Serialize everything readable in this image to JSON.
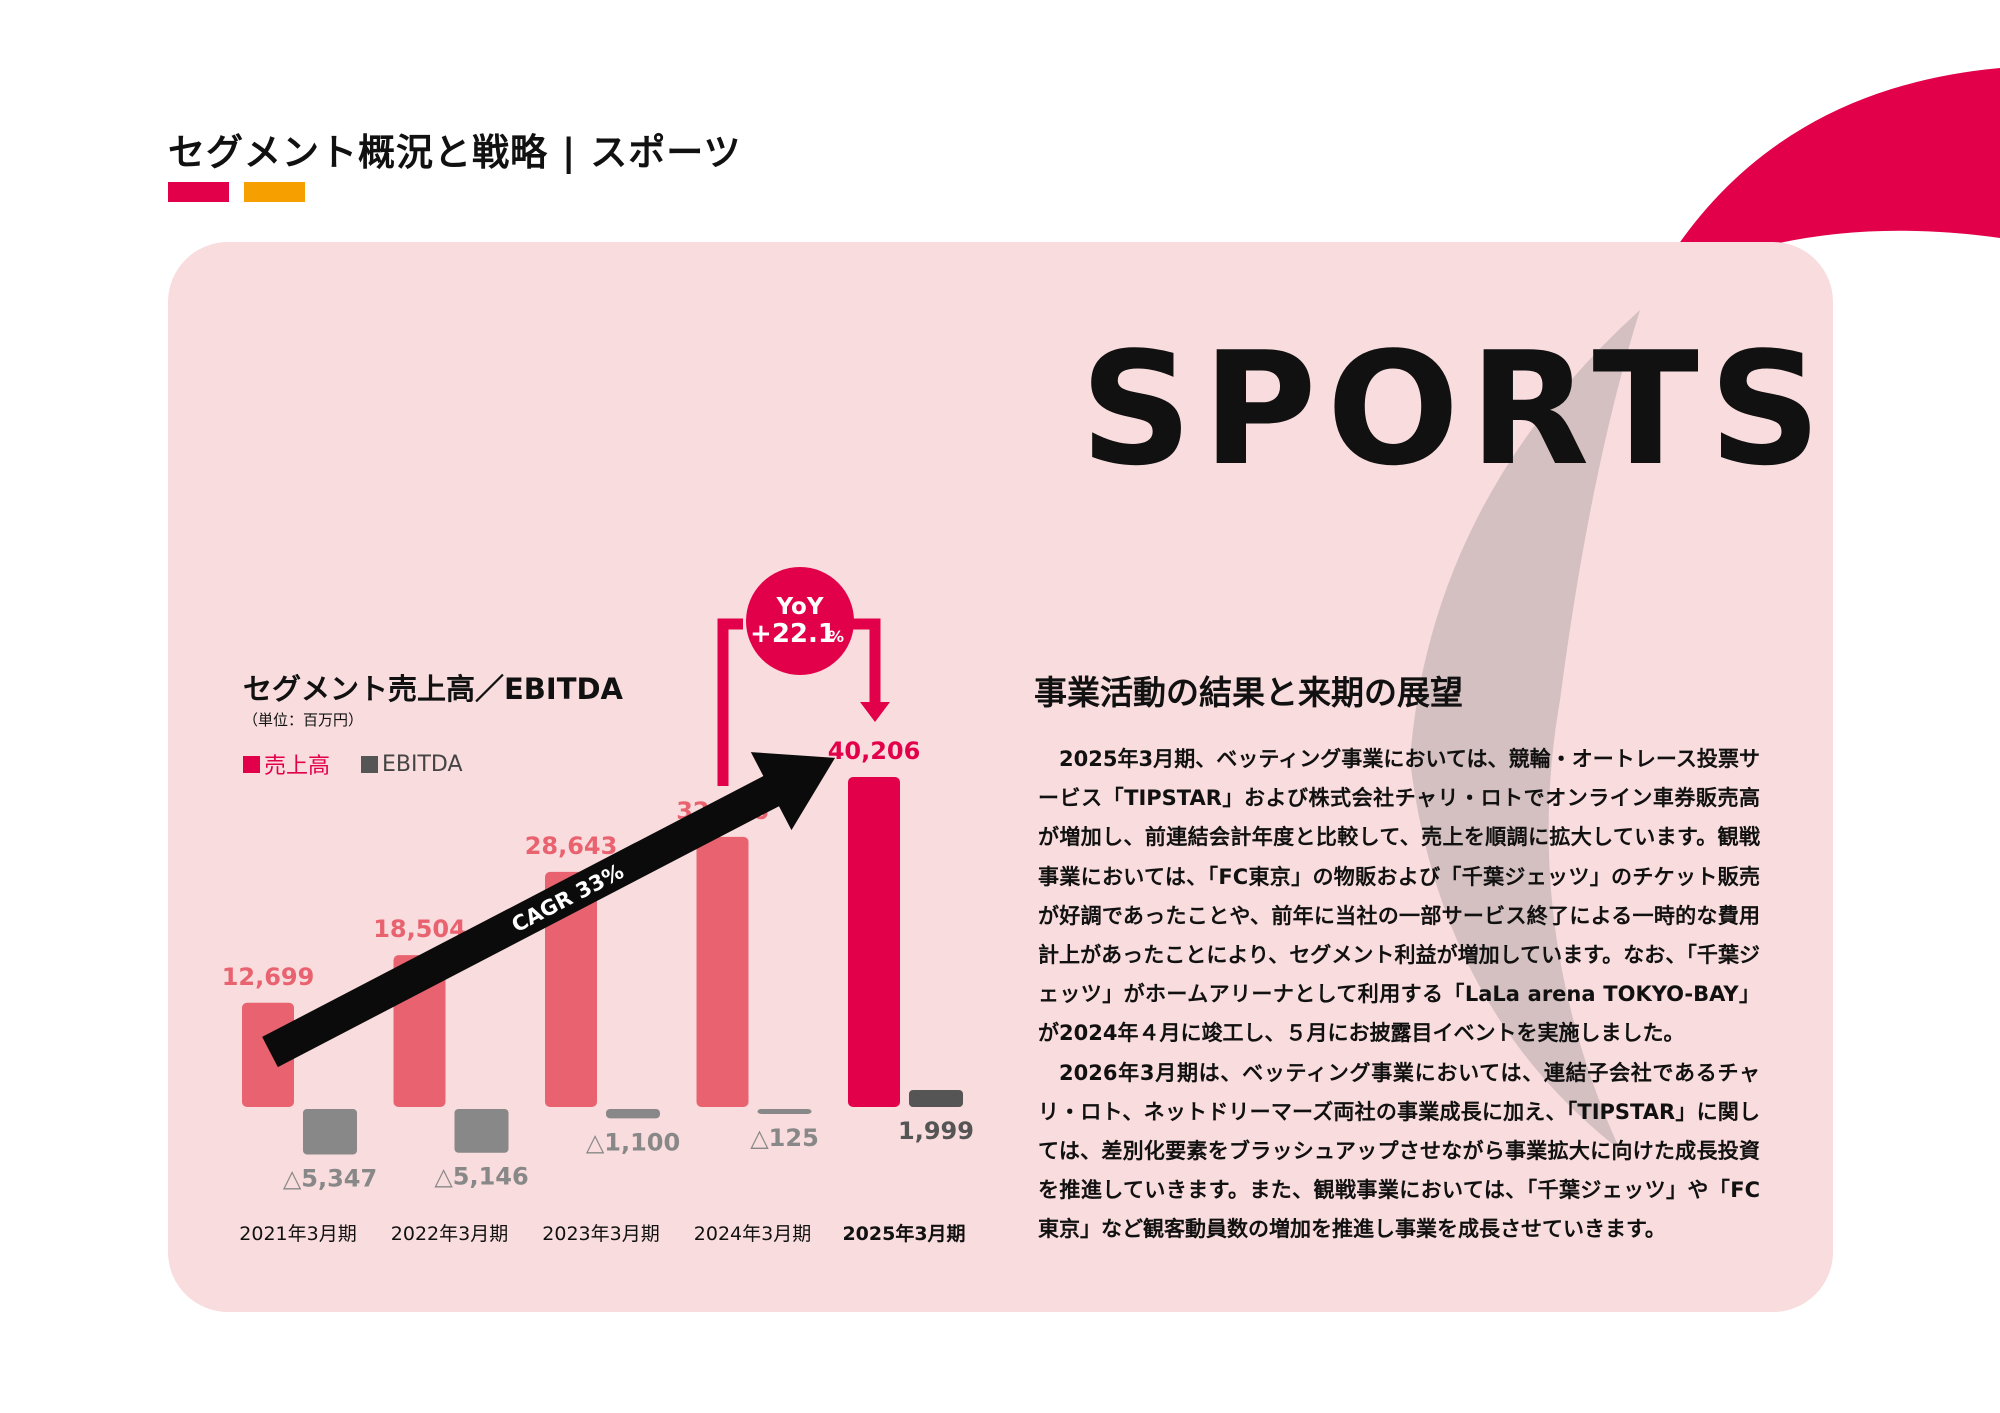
{
  "page_title": "セグメント概況と戦略 | スポーツ",
  "sports_word": "SPORTS",
  "colors": {
    "accent_red": "#e2004b",
    "accent_orange": "#f5a000",
    "panel_pink": "#f9dcdd",
    "bar_sales_past": "#e8636f",
    "bar_sales_current": "#e2004b",
    "bar_ebitda_negative": "#888888",
    "bar_ebitda_positive": "#555555"
  },
  "chart_data": {
    "type": "bar",
    "title": "セグメント売上高／EBITDA",
    "unit": "（単位：百万円）",
    "categories": [
      "2021年3月期",
      "2022年3月期",
      "2023年3月期",
      "2024年3月期",
      "2025年3月期"
    ],
    "series": [
      {
        "name": "売上高",
        "values": [
          12699,
          18504,
          28643,
          32916,
          40206
        ],
        "labels": [
          "12,699",
          "18,504",
          "28,643",
          "32,916",
          "40,206"
        ]
      },
      {
        "name": "EBITDA",
        "values": [
          -5347,
          -5146,
          -1100,
          -125,
          1999
        ],
        "labels": [
          "△5,347",
          "△5,146",
          "△1,100",
          "△125",
          "1,999"
        ]
      }
    ],
    "annotations": {
      "cagr": "CAGR 33%",
      "yoy_top": "YoY",
      "yoy_value": "+22.1",
      "yoy_unit": "%"
    }
  },
  "text_section": {
    "heading": "事業活動の結果と来期の展望",
    "paragraphs": [
      "2025年3月期、ベッティング事業においては、競輪・オートレース投票サービス「TIPSTAR」および株式会社チャリ・ロトでオンライン車券販売高が増加し、前連結会計年度と比較して、売上を順調に拡大しています。観戦事業においては、「FC東京」の物販および「千葉ジェッツ」のチケット販売が好調であったことや、前年に当社の一部サービス終了による一時的な費用計上があったことにより、セグメント利益が増加しています。なお、「千葉ジェッツ」がホームアリーナとして利用する「LaLa arena TOKYO-BAY」が2024年４月に竣工し、５月にお披露目イベントを実施しました。",
      "2026年3月期は、ベッティング事業においては、連結子会社であるチャリ・ロト、ネットドリーマーズ両社の事業成長に加え、「TIPSTAR」に関しては、差別化要素をブラッシュアップさせながら事業拡大に向けた成長投資を推進していきます。また、観戦事業においては、「千葉ジェッツ」や「FC東京」など観客動員数の増加を推進し事業を成長させていきます。"
    ]
  }
}
